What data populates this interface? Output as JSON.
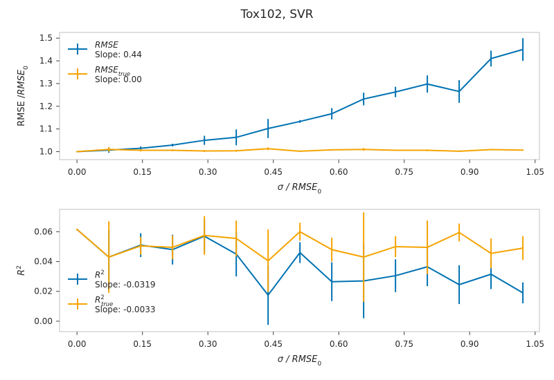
{
  "figure": {
    "title": "Tox102, SVR"
  },
  "chart_data": [
    {
      "type": "line",
      "xlabel": "σ / RMSE_0",
      "ylabel": "RMSE /RMSE_0",
      "xlim": [
        -0.04,
        1.06
      ],
      "ylim": [
        0.965,
        1.525
      ],
      "xticks": [
        "0.00",
        "0.15",
        "0.30",
        "0.45",
        "0.60",
        "0.75",
        "0.90",
        "1.05"
      ],
      "yticks": [
        "1.0",
        "1.1",
        "1.2",
        "1.3",
        "1.4",
        "1.5"
      ],
      "legend_position": "upper-left",
      "x": [
        0.0,
        0.073,
        0.146,
        0.219,
        0.292,
        0.365,
        0.438,
        0.511,
        0.584,
        0.657,
        0.73,
        0.803,
        0.876,
        0.949,
        1.022
      ],
      "series": [
        {
          "name": "RMSE",
          "slope": "Slope: 0.44",
          "color": "#0072B2",
          "values": [
            1.0,
            1.007,
            1.015,
            1.029,
            1.05,
            1.063,
            1.102,
            1.133,
            1.167,
            1.232,
            1.263,
            1.298,
            1.265,
            1.41,
            1.45
          ],
          "errors": [
            0.003,
            0.012,
            0.008,
            0.006,
            0.02,
            0.035,
            0.042,
            0.006,
            0.025,
            0.028,
            0.023,
            0.038,
            0.05,
            0.035,
            0.05
          ]
        },
        {
          "name": "RMSE_true",
          "slope": "Slope: 0.00",
          "color": "#F5A300",
          "values": [
            1.0,
            1.01,
            1.006,
            1.006,
            1.003,
            1.004,
            1.013,
            1.002,
            1.008,
            1.01,
            1.006,
            1.006,
            1.002,
            1.009,
            1.007
          ],
          "errors": [
            0.003,
            0.01,
            0.005,
            0.004,
            0.004,
            0.004,
            0.006,
            0.003,
            0.003,
            0.006,
            0.003,
            0.004,
            0.003,
            0.003,
            0.003
          ]
        }
      ]
    },
    {
      "type": "line",
      "xlabel": "σ / RMSE_0",
      "ylabel": "R^2",
      "xlim": [
        -0.04,
        1.06
      ],
      "ylim": [
        -0.007,
        0.075
      ],
      "xticks": [
        "0.00",
        "0.15",
        "0.30",
        "0.45",
        "0.60",
        "0.75",
        "0.90",
        "1.05"
      ],
      "yticks": [
        "0.00",
        "0.02",
        "0.04",
        "0.06"
      ],
      "legend_position": "lower-left",
      "x": [
        0.0,
        0.073,
        0.146,
        0.219,
        0.292,
        0.365,
        0.438,
        0.511,
        0.584,
        0.657,
        0.73,
        0.803,
        0.876,
        0.949,
        1.022
      ],
      "series": [
        {
          "name": "R^2",
          "slope": "Slope: -0.0319",
          "color": "#0072B2",
          "values": [
            0.0615,
            0.043,
            0.051,
            0.048,
            0.057,
            0.045,
            0.0175,
            0.046,
            0.0265,
            0.027,
            0.0305,
            0.0365,
            0.0245,
            0.0315,
            0.019
          ],
          "errors": [
            0.0005,
            0.018,
            0.008,
            0.01,
            0.011,
            0.015,
            0.02,
            0.007,
            0.013,
            0.025,
            0.011,
            0.013,
            0.013,
            0.01,
            0.007
          ]
        },
        {
          "name": "R^2_true",
          "slope": "Slope: -0.0033",
          "color": "#F5A300",
          "values": [
            0.0615,
            0.043,
            0.0505,
            0.0495,
            0.0575,
            0.0555,
            0.0405,
            0.06,
            0.048,
            0.043,
            0.05,
            0.0495,
            0.0595,
            0.0455,
            0.049
          ],
          "errors": [
            0.0005,
            0.024,
            0.006,
            0.008,
            0.013,
            0.012,
            0.021,
            0.006,
            0.008,
            0.03,
            0.007,
            0.018,
            0.006,
            0.01,
            0.008
          ]
        }
      ]
    }
  ]
}
